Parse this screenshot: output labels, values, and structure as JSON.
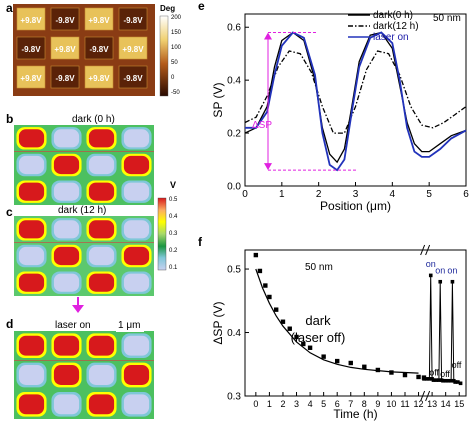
{
  "panels": {
    "a": {
      "letter": "a",
      "colorbar_unit": "Deg",
      "colorbar_ticks": [
        "200",
        "150",
        "100",
        "50",
        "0",
        "-50"
      ],
      "voltage_labels": [
        "+9.8V",
        "-9.8V",
        "+9.8V",
        "-9.8V",
        "-9.8V",
        "+9.8V",
        "-9.8V",
        "+9.8V",
        "+9.8V",
        "-9.8V",
        "+9.8V",
        "-9.8V"
      ]
    },
    "b": {
      "letter": "b",
      "label": "dark (0 h)"
    },
    "c": {
      "letter": "c",
      "label": "dark (12 h)"
    },
    "d": {
      "letter": "d",
      "label": "laser on",
      "scale_bar": "1 μm"
    },
    "potential_colorbar": {
      "unit": "V",
      "ticks": [
        "0.5",
        "0.4",
        "0.3",
        "0.2",
        "0.1"
      ],
      "colors": [
        "#d7191c",
        "#fdae61",
        "#ffff00",
        "#a6d96a",
        "#1a9641",
        "#7fc7d8",
        "#c8d0f0"
      ]
    }
  },
  "chart_data": [
    {
      "panel": "e",
      "type": "line",
      "annotation": "50 nm",
      "annotation_delta": "ΔSP",
      "xlabel": "Position (μm)",
      "ylabel": "SP (V)",
      "xlim": [
        0,
        6
      ],
      "ylim": [
        0.0,
        0.65
      ],
      "xticks": [
        "0",
        "1",
        "2",
        "3",
        "4",
        "5",
        "6"
      ],
      "yticks": [
        "0.0",
        "0.2",
        "0.4",
        "0.6"
      ],
      "legend_position": "top-right",
      "series": [
        {
          "name": "dark(0 h)",
          "style": "solid",
          "color": "#000000",
          "x": [
            0,
            0.3,
            0.6,
            0.8,
            1.0,
            1.3,
            1.6,
            1.9,
            2.1,
            2.3,
            2.5,
            2.7,
            2.9,
            3.1,
            3.4,
            3.7,
            4.0,
            4.2,
            4.4,
            4.6,
            4.8,
            5.0,
            5.3,
            5.6,
            6.0
          ],
          "y": [
            0.2,
            0.22,
            0.3,
            0.45,
            0.55,
            0.58,
            0.55,
            0.4,
            0.22,
            0.12,
            0.09,
            0.14,
            0.3,
            0.47,
            0.57,
            0.58,
            0.52,
            0.38,
            0.24,
            0.16,
            0.13,
            0.13,
            0.16,
            0.19,
            0.21
          ]
        },
        {
          "name": "dark(12 h)",
          "style": "dashdot",
          "color": "#000000",
          "x": [
            0,
            0.3,
            0.6,
            0.9,
            1.2,
            1.5,
            1.8,
            2.1,
            2.4,
            2.7,
            3.0,
            3.3,
            3.6,
            3.9,
            4.2,
            4.5,
            4.8,
            5.1,
            5.4,
            5.7,
            6.0
          ],
          "y": [
            0.24,
            0.26,
            0.34,
            0.45,
            0.51,
            0.5,
            0.43,
            0.3,
            0.2,
            0.2,
            0.3,
            0.44,
            0.51,
            0.5,
            0.42,
            0.3,
            0.23,
            0.22,
            0.24,
            0.27,
            0.3
          ]
        },
        {
          "name": "laser on",
          "style": "solid",
          "color": "#2233bb",
          "x": [
            0,
            0.3,
            0.6,
            0.8,
            1.0,
            1.3,
            1.6,
            1.9,
            2.1,
            2.3,
            2.5,
            2.7,
            2.9,
            3.1,
            3.4,
            3.7,
            4.0,
            4.2,
            4.4,
            4.6,
            4.8,
            5.0,
            5.3,
            5.6,
            6.0
          ],
          "y": [
            0.22,
            0.22,
            0.28,
            0.42,
            0.53,
            0.58,
            0.56,
            0.42,
            0.2,
            0.08,
            0.06,
            0.1,
            0.28,
            0.45,
            0.56,
            0.58,
            0.54,
            0.4,
            0.22,
            0.13,
            0.11,
            0.11,
            0.14,
            0.18,
            0.21
          ]
        }
      ]
    },
    {
      "panel": "f",
      "type": "scatter",
      "annotation": "50 nm",
      "annotation_main": [
        "dark",
        "(laser off)"
      ],
      "xlabel": "Time (h)",
      "ylabel": "ΔSP (V)",
      "xlim": [
        -0.8,
        15.5
      ],
      "ylim": [
        0.3,
        0.53
      ],
      "xticks": [
        "0",
        "1",
        "2",
        "3",
        "4",
        "5",
        "6",
        "7",
        "8",
        "9",
        "10",
        "11",
        "12",
        "13",
        "14",
        "15"
      ],
      "yticks": [
        "0.3",
        "0.4",
        "0.5"
      ],
      "axis_break_x": 12.3,
      "points": {
        "x": [
          0.0,
          0.3,
          0.7,
          1.0,
          1.5,
          2.0,
          2.5,
          3.0,
          3.5,
          4.0,
          5.0,
          6.0,
          7.0,
          8.0,
          9.0,
          10.0,
          11.0,
          12.0,
          12.4
        ],
        "y": [
          0.522,
          0.497,
          0.474,
          0.456,
          0.436,
          0.417,
          0.406,
          0.393,
          0.382,
          0.376,
          0.362,
          0.355,
          0.352,
          0.346,
          0.341,
          0.337,
          0.333,
          0.33,
          0.329
        ]
      },
      "fit_curve": {
        "x": [
          0.0,
          0.5,
          1.0,
          1.5,
          2.0,
          3.0,
          4.0,
          5.0,
          6.0,
          7.0,
          8.0,
          9.0,
          10.0,
          11.0,
          12.0
        ],
        "y": [
          0.5,
          0.47,
          0.446,
          0.426,
          0.41,
          0.385,
          0.368,
          0.357,
          0.35,
          0.345,
          0.342,
          0.34,
          0.338,
          0.337,
          0.336
        ]
      },
      "pulse_series": {
        "x": [
          12.4,
          12.6,
          12.8,
          12.9,
          13.0,
          13.1,
          13.3,
          13.5,
          13.6,
          13.7,
          13.8,
          14.0,
          14.2,
          14.4,
          14.5,
          14.6,
          14.7,
          14.9,
          15.1
        ],
        "y": [
          0.327,
          0.327,
          0.327,
          0.49,
          0.327,
          0.325,
          0.325,
          0.325,
          0.48,
          0.325,
          0.324,
          0.324,
          0.324,
          0.324,
          0.48,
          0.324,
          0.322,
          0.322,
          0.32
        ]
      },
      "pulse_labels": [
        {
          "text": "on",
          "x": 12.9,
          "y": 0.503,
          "color": "#1f2a9c"
        },
        {
          "text": "on",
          "x": 13.6,
          "y": 0.493,
          "color": "#1f2a9c"
        },
        {
          "text": "on",
          "x": 14.5,
          "y": 0.493,
          "color": "#1f2a9c"
        },
        {
          "text": "off",
          "x": 13.15,
          "y": 0.332,
          "color": "#000000"
        },
        {
          "text": "off",
          "x": 13.95,
          "y": 0.33,
          "color": "#000000"
        },
        {
          "text": "off",
          "x": 14.8,
          "y": 0.344,
          "color": "#000000"
        }
      ]
    }
  ]
}
